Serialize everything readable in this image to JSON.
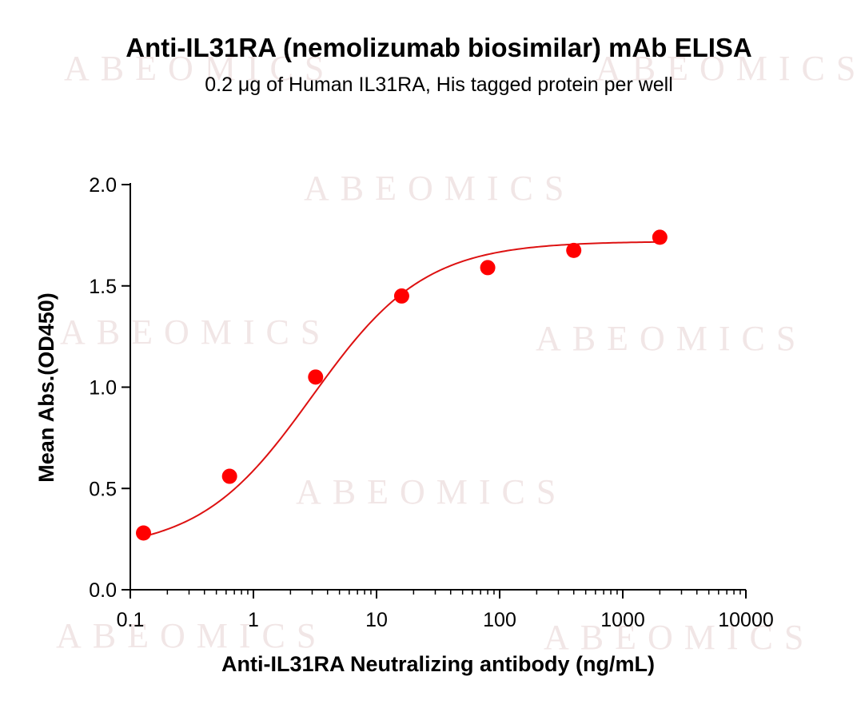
{
  "chart_data": {
    "type": "scatter",
    "title": "Anti-IL31RA (nemolizumab biosimilar) mAb ELISA",
    "subtitle": "0.2 μg of Human IL31RA, His tagged protein per well",
    "xlabel": "Anti-IL31RA Neutralizing antibody (ng/mL)",
    "ylabel": "Mean Abs.(OD450)",
    "xscale": "log",
    "xlim": [
      0.1,
      10000
    ],
    "ylim": [
      0,
      2.0
    ],
    "xticks": [
      0.1,
      1,
      10,
      100,
      1000,
      10000
    ],
    "xtick_labels": [
      "0.1",
      "1",
      "10",
      "100",
      "1000",
      "10000"
    ],
    "yticks": [
      0,
      0.5,
      1.0,
      1.5,
      2.0
    ],
    "ytick_labels": [
      "0.0",
      "0.5",
      "1.0",
      "1.5",
      "2.0"
    ],
    "grid": false,
    "series": [
      {
        "x": [
          0.128,
          0.64,
          3.2,
          16,
          80,
          400,
          2000
        ],
        "y": [
          0.28,
          0.56,
          1.05,
          1.45,
          1.59,
          1.675,
          1.74
        ]
      }
    ],
    "fit_curve": {
      "model": "4PL",
      "bottom": 0.19,
      "top": 1.72,
      "ec50": 3.0,
      "hill": 0.95
    },
    "colors": {
      "points": "#ff0000",
      "curve": "#dd1111",
      "axes": "#000000"
    },
    "watermark": "ABEOMICS"
  }
}
